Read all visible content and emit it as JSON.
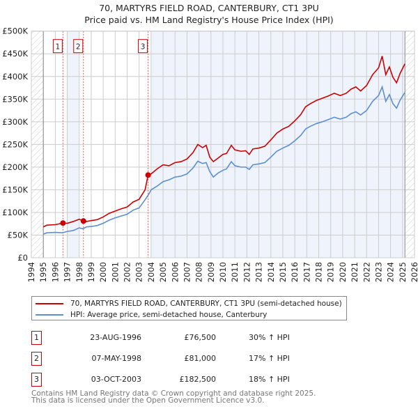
{
  "chart_data": {
    "type": "line",
    "title": "70, MARTYRS FIELD ROAD, CANTERBURY, CT1 3PU",
    "subtitle": "Price paid vs. HM Land Registry's House Price Index (HPI)",
    "xlim": [
      1994,
      2026
    ],
    "ylim": [
      0,
      500000
    ],
    "x_ticks": [
      "1994",
      "1995",
      "1996",
      "1997",
      "1998",
      "1999",
      "2000",
      "2001",
      "2002",
      "2003",
      "2004",
      "2005",
      "2006",
      "2007",
      "2008",
      "2009",
      "2010",
      "2011",
      "2012",
      "2013",
      "2014",
      "2015",
      "2016",
      "2017",
      "2018",
      "2019",
      "2020",
      "2021",
      "2022",
      "2023",
      "2024",
      "2025",
      "2026"
    ],
    "y_ticks": [
      {
        "v": 0,
        "label": "£0"
      },
      {
        "v": 50000,
        "label": "£50K"
      },
      {
        "v": 100000,
        "label": "£100K"
      },
      {
        "v": 150000,
        "label": "£150K"
      },
      {
        "v": 200000,
        "label": "£200K"
      },
      {
        "v": 250000,
        "label": "£250K"
      },
      {
        "v": 300000,
        "label": "£300K"
      },
      {
        "v": 350000,
        "label": "£350K"
      },
      {
        "v": 400000,
        "label": "£400K"
      },
      {
        "v": 450000,
        "label": "£450K"
      },
      {
        "v": 500000,
        "label": "£500K"
      }
    ],
    "data_range": [
      1995,
      2025.2
    ],
    "shaded": [
      [
        1997,
        1998
      ],
      [
        2004,
        2025.2
      ]
    ],
    "series": [
      {
        "name": "70, MARTYRS FIELD ROAD, CANTERBURY, CT1 3PU (semi-detached house)",
        "color": "#cc0000",
        "points": [
          [
            1995,
            68
          ],
          [
            1995.3,
            72
          ],
          [
            1996,
            73
          ],
          [
            1996.64,
            76.5
          ],
          [
            1997,
            76
          ],
          [
            1997.5,
            80
          ],
          [
            1998,
            85
          ],
          [
            1998.35,
            81
          ],
          [
            1998.6,
            80
          ],
          [
            1999,
            82
          ],
          [
            1999.5,
            84
          ],
          [
            2000,
            90
          ],
          [
            2000.5,
            98
          ],
          [
            2001,
            103
          ],
          [
            2001.5,
            108
          ],
          [
            2002,
            112
          ],
          [
            2002.5,
            123
          ],
          [
            2003,
            129
          ],
          [
            2003.5,
            150
          ],
          [
            2003.75,
            182.5
          ],
          [
            2004,
            185
          ],
          [
            2004.5,
            196
          ],
          [
            2005,
            205
          ],
          [
            2005.5,
            203
          ],
          [
            2006,
            210
          ],
          [
            2006.5,
            212
          ],
          [
            2007,
            218
          ],
          [
            2007.5,
            232
          ],
          [
            2007.9,
            250
          ],
          [
            2008.3,
            243
          ],
          [
            2008.6,
            248
          ],
          [
            2008.9,
            222
          ],
          [
            2009.2,
            212
          ],
          [
            2009.6,
            220
          ],
          [
            2010,
            228
          ],
          [
            2010.3,
            230
          ],
          [
            2010.7,
            248
          ],
          [
            2011,
            238
          ],
          [
            2011.5,
            235
          ],
          [
            2011.9,
            236
          ],
          [
            2012.2,
            228
          ],
          [
            2012.5,
            240
          ],
          [
            2013,
            242
          ],
          [
            2013.5,
            246
          ],
          [
            2014,
            260
          ],
          [
            2014.5,
            275
          ],
          [
            2015,
            284
          ],
          [
            2015.5,
            290
          ],
          [
            2016,
            302
          ],
          [
            2016.5,
            316
          ],
          [
            2016.9,
            333
          ],
          [
            2017.3,
            340
          ],
          [
            2017.8,
            347
          ],
          [
            2018.3,
            352
          ],
          [
            2018.8,
            357
          ],
          [
            2019.3,
            363
          ],
          [
            2019.8,
            358
          ],
          [
            2020.3,
            363
          ],
          [
            2020.7,
            372
          ],
          [
            2021.1,
            377
          ],
          [
            2021.5,
            368
          ],
          [
            2022,
            380
          ],
          [
            2022.5,
            404
          ],
          [
            2023,
            419
          ],
          [
            2023.3,
            445
          ],
          [
            2023.6,
            404
          ],
          [
            2023.9,
            421
          ],
          [
            2024.2,
            398
          ],
          [
            2024.5,
            386
          ],
          [
            2024.8,
            407
          ],
          [
            2025.2,
            428
          ]
        ]
      },
      {
        "name": "HPI: Average price, semi-detached house, Canterbury",
        "color": "#5b8fd0",
        "points": [
          [
            1995,
            52
          ],
          [
            1995.3,
            55
          ],
          [
            1996,
            56
          ],
          [
            1996.6,
            55
          ],
          [
            1997,
            58
          ],
          [
            1997.5,
            60
          ],
          [
            1998,
            66
          ],
          [
            1998.3,
            64
          ],
          [
            1998.6,
            68
          ],
          [
            1999,
            69
          ],
          [
            1999.5,
            71
          ],
          [
            2000,
            76
          ],
          [
            2000.5,
            83
          ],
          [
            2001,
            88
          ],
          [
            2001.5,
            92
          ],
          [
            2002,
            96
          ],
          [
            2002.5,
            105
          ],
          [
            2003,
            110
          ],
          [
            2003.5,
            128
          ],
          [
            2003.8,
            140
          ],
          [
            2004,
            150
          ],
          [
            2004.5,
            158
          ],
          [
            2005,
            168
          ],
          [
            2005.5,
            172
          ],
          [
            2006,
            178
          ],
          [
            2006.5,
            180
          ],
          [
            2007,
            185
          ],
          [
            2007.5,
            198
          ],
          [
            2007.9,
            213
          ],
          [
            2008.3,
            208
          ],
          [
            2008.6,
            210
          ],
          [
            2008.9,
            190
          ],
          [
            2009.2,
            178
          ],
          [
            2009.6,
            187
          ],
          [
            2010,
            193
          ],
          [
            2010.3,
            196
          ],
          [
            2010.7,
            212
          ],
          [
            2011,
            203
          ],
          [
            2011.5,
            200
          ],
          [
            2011.9,
            200
          ],
          [
            2012.2,
            195
          ],
          [
            2012.5,
            205
          ],
          [
            2013,
            207
          ],
          [
            2013.5,
            210
          ],
          [
            2014,
            222
          ],
          [
            2014.5,
            235
          ],
          [
            2015,
            242
          ],
          [
            2015.5,
            248
          ],
          [
            2016,
            258
          ],
          [
            2016.5,
            270
          ],
          [
            2016.9,
            284
          ],
          [
            2017.3,
            290
          ],
          [
            2017.8,
            296
          ],
          [
            2018.3,
            300
          ],
          [
            2018.8,
            305
          ],
          [
            2019.3,
            310
          ],
          [
            2019.8,
            306
          ],
          [
            2020.3,
            310
          ],
          [
            2020.7,
            318
          ],
          [
            2021.1,
            322
          ],
          [
            2021.5,
            315
          ],
          [
            2022,
            325
          ],
          [
            2022.5,
            345
          ],
          [
            2023,
            358
          ],
          [
            2023.3,
            377
          ],
          [
            2023.6,
            345
          ],
          [
            2023.9,
            360
          ],
          [
            2024.2,
            340
          ],
          [
            2024.5,
            330
          ],
          [
            2024.8,
            348
          ],
          [
            2025.2,
            365
          ]
        ]
      }
    ],
    "sales": [
      {
        "label": "1",
        "x": 1996.64,
        "y": 76.5
      },
      {
        "label": "2",
        "x": 1998.35,
        "y": 81
      },
      {
        "label": "3",
        "x": 2003.75,
        "y": 182.5
      }
    ]
  },
  "legend": {
    "property": "70, MARTYRS FIELD ROAD, CANTERBURY, CT1 3PU (semi-detached house)",
    "hpi": "HPI: Average price, semi-detached house, Canterbury"
  },
  "transactions": [
    {
      "n": "1",
      "date": "23-AUG-1996",
      "price": "£76,500",
      "hpi": "30% ↑ HPI"
    },
    {
      "n": "2",
      "date": "07-MAY-1998",
      "price": "£81,000",
      "hpi": "17% ↑ HPI"
    },
    {
      "n": "3",
      "date": "03-OCT-2003",
      "price": "£182,500",
      "hpi": "18% ↑ HPI"
    }
  ],
  "footer": {
    "line1": "Contains HM Land Registry data © Crown copyright and database right 2025.",
    "line2": "This data is licensed under the Open Government Licence v3.0."
  }
}
